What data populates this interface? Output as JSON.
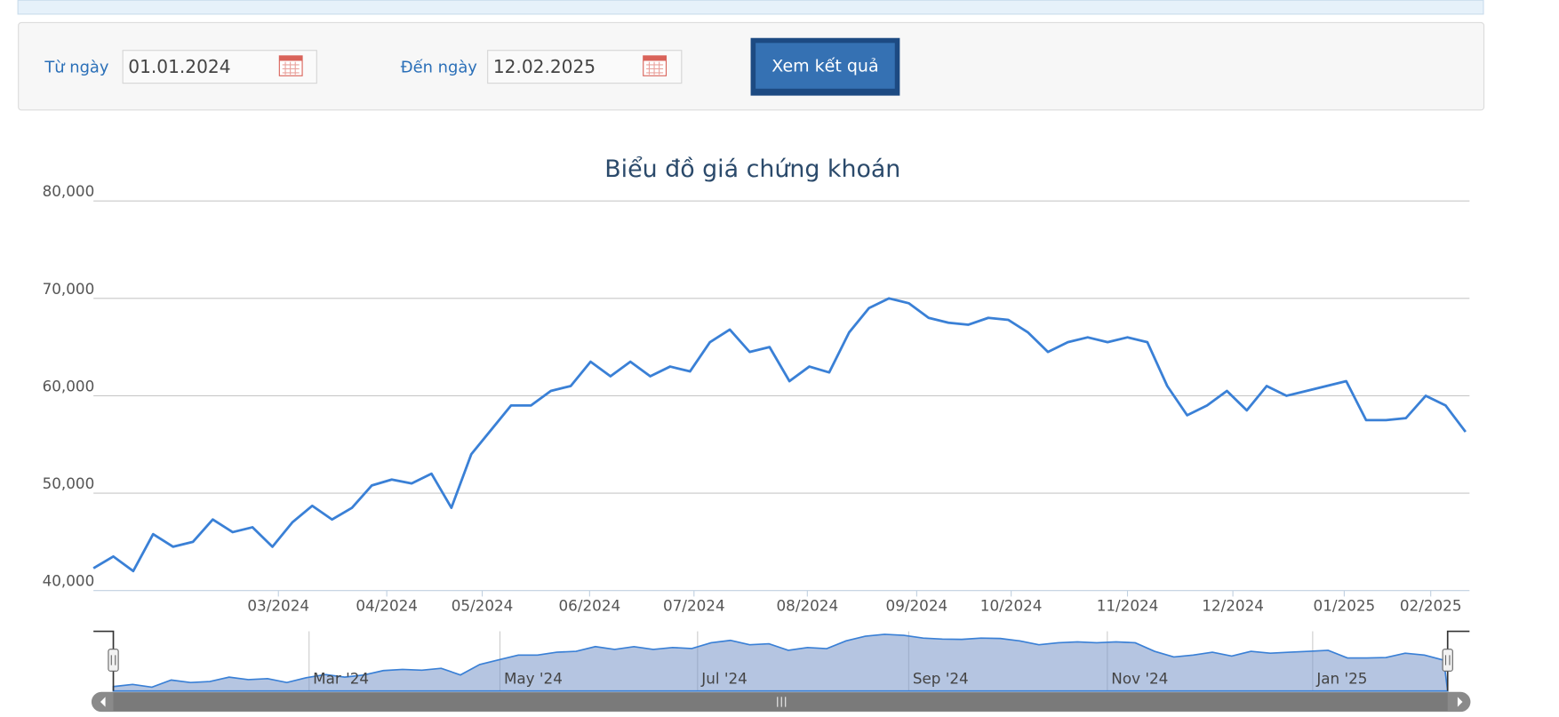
{
  "form": {
    "from_label": "Từ ngày",
    "from_value": "01.01.2024",
    "to_label": "Đến ngày",
    "to_value": "12.02.2025",
    "button": "Xem kết quả"
  },
  "chart_data": {
    "type": "line",
    "title": "Biểu đồ giá chứng khoán",
    "color": "#3a80d6",
    "values": [
      42300,
      43500,
      42000,
      45800,
      44500,
      45000,
      47300,
      46000,
      46500,
      44500,
      47000,
      48700,
      47300,
      48500,
      50800,
      51400,
      51000,
      52000,
      48500,
      54000,
      56500,
      59000,
      59000,
      60500,
      61000,
      63500,
      62000,
      63500,
      62000,
      63000,
      62500,
      65500,
      66800,
      64500,
      65000,
      61500,
      63000,
      62400,
      66500,
      69000,
      70000,
      69500,
      68000,
      67500,
      67300,
      68000,
      67800,
      66500,
      64500,
      65500,
      66000,
      65500,
      66000,
      65500,
      61000,
      58000,
      59000,
      60500,
      58500,
      61000,
      60000,
      60500,
      61000,
      61500,
      57500,
      57500,
      57700,
      60000,
      59000,
      56300
    ],
    "xlim": [
      0,
      69.2
    ],
    "xticks": [
      {
        "value": 9.3,
        "label": "03/2024"
      },
      {
        "value": 14.75,
        "label": "04/2024"
      },
      {
        "value": 19.55,
        "label": "05/2024"
      },
      {
        "value": 24.95,
        "label": "06/2024"
      },
      {
        "value": 30.2,
        "label": "07/2024"
      },
      {
        "value": 35.9,
        "label": "08/2024"
      },
      {
        "value": 41.4,
        "label": "09/2024"
      },
      {
        "value": 46.15,
        "label": "10/2024"
      },
      {
        "value": 52,
        "label": "11/2024"
      },
      {
        "value": 57.3,
        "label": "12/2024"
      },
      {
        "value": 62.9,
        "label": "01/2025"
      },
      {
        "value": 67.25,
        "label": "02/2025"
      }
    ],
    "ylim": [
      40000,
      80000
    ],
    "yticks": [
      {
        "value": 40000,
        "label": "40,000"
      },
      {
        "value": 50000,
        "label": "50,000"
      },
      {
        "value": 60000,
        "label": "60,000"
      },
      {
        "value": 70000,
        "label": "70,000"
      },
      {
        "value": 80000,
        "label": "80,000"
      }
    ],
    "grid": true,
    "navigator_ticks": [
      {
        "value": 10.15,
        "label": "Mar '24"
      },
      {
        "value": 20.05,
        "label": "May '24"
      },
      {
        "value": 30.3,
        "label": "Jul '24"
      },
      {
        "value": 41.25,
        "label": "Sep '24"
      },
      {
        "value": 51.55,
        "label": "Nov '24"
      },
      {
        "value": 62.2,
        "label": "Jan '25"
      }
    ]
  }
}
